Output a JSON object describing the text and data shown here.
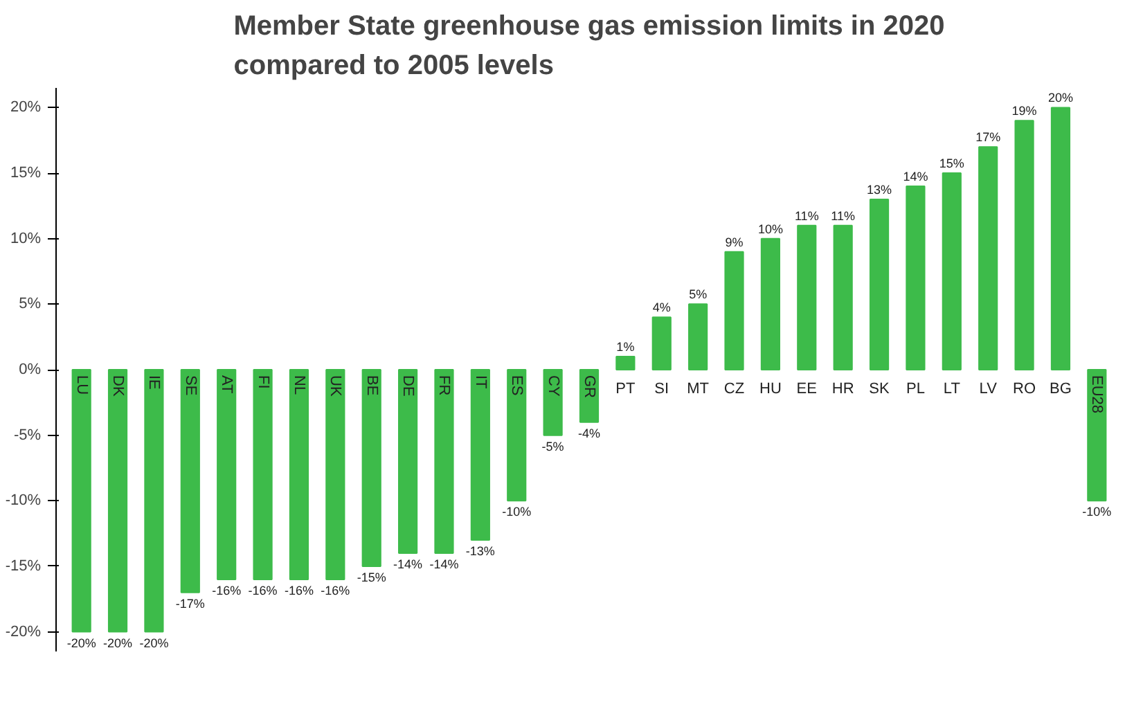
{
  "chart_data": {
    "type": "bar",
    "title": "Member State greenhouse gas emission limits in 2020\ncompared to 2005 levels",
    "categories": [
      "LU",
      "DK",
      "IE",
      "SE",
      "AT",
      "FI",
      "NL",
      "UK",
      "BE",
      "DE",
      "FR",
      "IT",
      "ES",
      "CY",
      "GR",
      "PT",
      "SI",
      "MT",
      "CZ",
      "HU",
      "EE",
      "HR",
      "SK",
      "PL",
      "LT",
      "LV",
      "RO",
      "BG",
      "EU28"
    ],
    "values": [
      -20,
      -20,
      -20,
      -17,
      -16,
      -16,
      -16,
      -16,
      -15,
      -14,
      -14,
      -13,
      -10,
      -5,
      -4,
      1,
      4,
      5,
      9,
      10,
      11,
      11,
      13,
      14,
      15,
      17,
      19,
      20,
      -10
    ],
    "value_labels": [
      "-20%",
      "-20%",
      "-20%",
      "-17%",
      "-16%",
      "-16%",
      "-16%",
      "-16%",
      "-15%",
      "-14%",
      "-14%",
      "-13%",
      "-10%",
      "-5%",
      "-4%",
      "1%",
      "4%",
      "5%",
      "9%",
      "10%",
      "11%",
      "11%",
      "13%",
      "14%",
      "15%",
      "17%",
      "19%",
      "20%",
      "-10%"
    ],
    "color": "#3dbb4a",
    "ylim": [
      -21.5,
      21.5
    ],
    "yticks": [
      {
        "value": -20,
        "label": "-20%"
      },
      {
        "value": -15,
        "label": "-15%"
      },
      {
        "value": -10,
        "label": "-10%"
      },
      {
        "value": -5,
        "label": "-5%"
      },
      {
        "value": 0,
        "label": "0%"
      },
      {
        "value": 5,
        "label": "5%"
      },
      {
        "value": 10,
        "label": "10%"
      },
      {
        "value": 15,
        "label": "15%"
      },
      {
        "value": 20,
        "label": "20%"
      }
    ],
    "grid": false
  }
}
